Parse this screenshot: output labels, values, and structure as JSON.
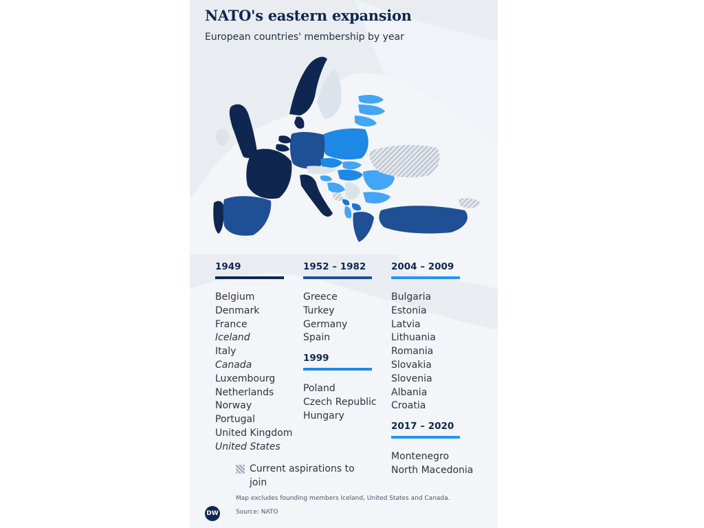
{
  "title": "NATO's eastern expansion",
  "subtitle": "European countries' membership by year",
  "colors": {
    "c1949": "#0f2750",
    "c1952_1982": "#1f4f95",
    "c1999": "#1e88e5",
    "c2004_2009": "#42a5f5",
    "c2017_2020": "#1976d2",
    "aspiration_hatch": "#9aa6b6",
    "land": "#f3f5f8",
    "sea": "#e9edf2"
  },
  "groups": [
    {
      "period": "1949",
      "countries": [
        {
          "name": "Belgium",
          "italic": false
        },
        {
          "name": "Denmark",
          "italic": false
        },
        {
          "name": "France",
          "italic": false
        },
        {
          "name": "Iceland",
          "italic": true
        },
        {
          "name": "Italy",
          "italic": false
        },
        {
          "name": "Canada",
          "italic": true
        },
        {
          "name": "Luxembourg",
          "italic": false
        },
        {
          "name": "Netherlands",
          "italic": false
        },
        {
          "name": "Norway",
          "italic": false
        },
        {
          "name": "Portugal",
          "italic": false
        },
        {
          "name": "United Kingdom",
          "italic": false
        },
        {
          "name": "United States",
          "italic": true
        }
      ]
    },
    {
      "period": "1952 – 1982",
      "countries": [
        {
          "name": "Greece",
          "italic": false
        },
        {
          "name": "Turkey",
          "italic": false
        },
        {
          "name": "Germany",
          "italic": false
        },
        {
          "name": "Spain",
          "italic": false
        }
      ]
    },
    {
      "period": "1999",
      "countries": [
        {
          "name": "Poland",
          "italic": false
        },
        {
          "name": "Czech Republic",
          "italic": false
        },
        {
          "name": "Hungary",
          "italic": false
        }
      ]
    },
    {
      "period": "2004 – 2009",
      "countries": [
        {
          "name": "Bulgaria",
          "italic": false
        },
        {
          "name": "Estonia",
          "italic": false
        },
        {
          "name": "Latvia",
          "italic": false
        },
        {
          "name": "Lithuania",
          "italic": false
        },
        {
          "name": "Romania",
          "italic": false
        },
        {
          "name": "Slovakia",
          "italic": false
        },
        {
          "name": "Slovenia",
          "italic": false
        },
        {
          "name": "Albania",
          "italic": false
        },
        {
          "name": "Croatia",
          "italic": false
        }
      ]
    },
    {
      "period": "2017 – 2020",
      "countries": [
        {
          "name": "Montenegro",
          "italic": false
        },
        {
          "name": "North Macedonia",
          "italic": false
        }
      ]
    }
  ],
  "legend": {
    "aspiration_label": "Current aspirations to join"
  },
  "note": "Map excludes founding members Iceland, United States and Canada.",
  "source": "Source: NATO",
  "logo": "DW"
}
